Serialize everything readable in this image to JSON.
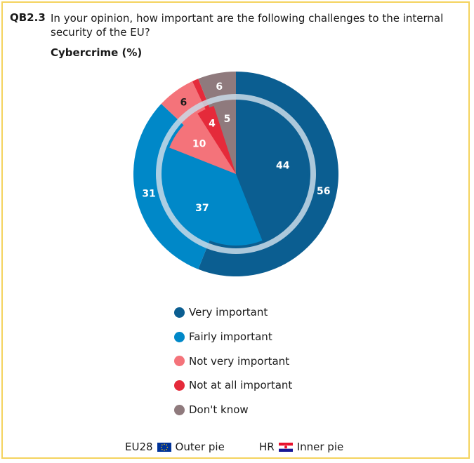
{
  "header": {
    "code": "QB2.3",
    "question": "In your opinion, how important are the following challenges to the internal security of the EU?",
    "subtitle": "Cybercrime (%)"
  },
  "chart_data": {
    "type": "pie",
    "title": "Cybercrime (%)",
    "categories": [
      "Very important",
      "Fairly important",
      "Not very important",
      "Not at all important",
      "Don't know"
    ],
    "colors": [
      "#0b5e91",
      "#0088c8",
      "#f4737a",
      "#e52a3a",
      "#8f7a7d"
    ],
    "series": [
      {
        "name": "Outer pie",
        "values": [
          56,
          31,
          6,
          1,
          6
        ],
        "labels": [
          "56",
          "31",
          "6",
          "",
          "6"
        ]
      },
      {
        "name": "Inner pie",
        "values": [
          44,
          37,
          10,
          4,
          5
        ],
        "labels": [
          "44",
          "37",
          "10",
          "4",
          "5"
        ]
      }
    ]
  },
  "legend": [
    {
      "label": "Very important",
      "color": "#0b5e91"
    },
    {
      "label": "Fairly important",
      "color": "#0088c8"
    },
    {
      "label": "Not very important",
      "color": "#f4737a"
    },
    {
      "label": "Not at all important",
      "color": "#e52a3a"
    },
    {
      "label": "Don't know",
      "color": "#8f7a7d"
    }
  ],
  "footer": {
    "eu_label": "EU28",
    "outer_label": "Outer pie",
    "hr_label": "HR",
    "inner_label": "Inner pie"
  }
}
